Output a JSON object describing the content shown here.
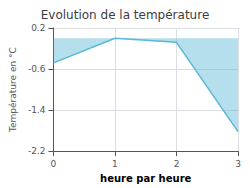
{
  "chart_data": {
    "type": "area",
    "title": "Evolution de la température",
    "xlabel": "heure par heure",
    "ylabel": "Température en °C",
    "x": [
      0,
      1,
      2,
      3
    ],
    "values": [
      -0.48,
      0.0,
      -0.08,
      -1.82
    ],
    "baseline": 0.0,
    "color": "#5bb8d4",
    "xlim": [
      0,
      3
    ],
    "xticks": [
      0,
      1,
      2,
      3
    ],
    "ylim": [
      -2.2,
      0.2
    ],
    "yticks": [
      0.2,
      -0.6,
      -1.4,
      -2.2
    ],
    "grid": true
  }
}
